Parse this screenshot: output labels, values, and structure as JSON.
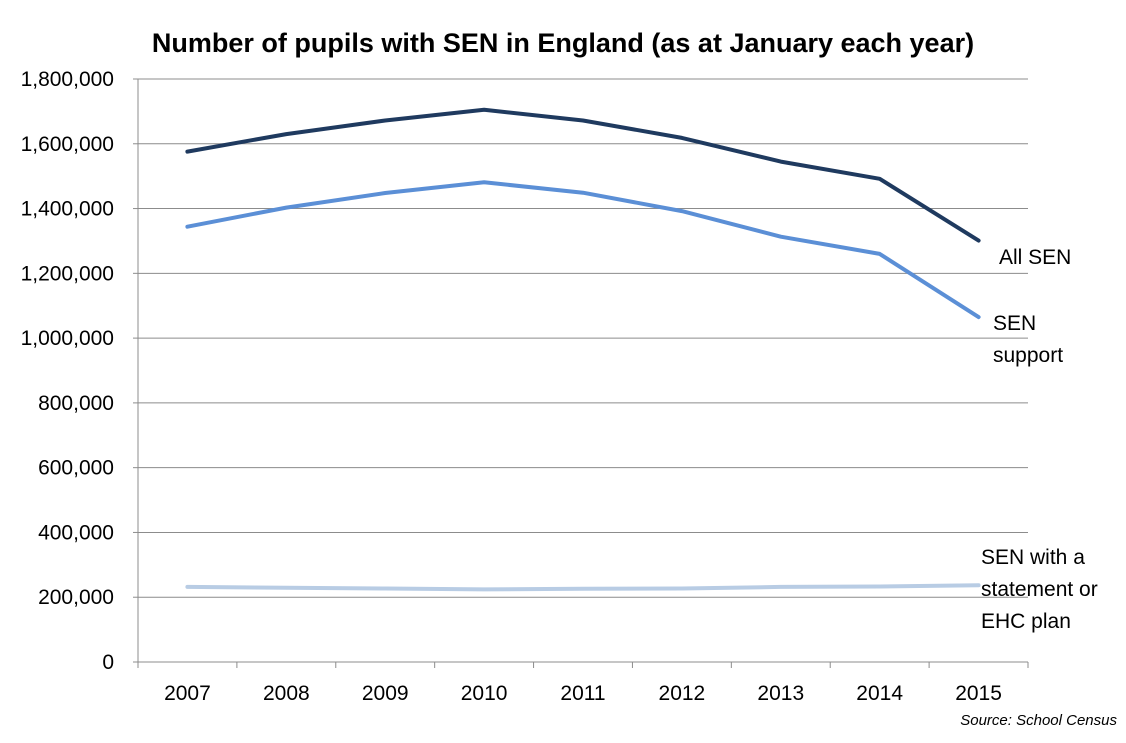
{
  "chart_data": {
    "type": "line",
    "title": "Number of pupils with SEN in England (as at January each year)",
    "xlabel": "",
    "ylabel": "",
    "source": "Source: School Census",
    "categories": [
      "2007",
      "2008",
      "2009",
      "2010",
      "2011",
      "2012",
      "2013",
      "2014",
      "2015"
    ],
    "ylim": [
      0,
      1800000
    ],
    "yticks": [
      0,
      200000,
      400000,
      600000,
      800000,
      1000000,
      1200000,
      1400000,
      1600000,
      1800000
    ],
    "ytick_labels": [
      "0",
      "200,000",
      "400,000",
      "600,000",
      "800,000",
      "1,000,000",
      "1,200,000",
      "1,400,000",
      "1,600,000",
      "1,800,000"
    ],
    "grid": true,
    "legend": "inline labels at right end of each line",
    "series": [
      {
        "name": "All SEN",
        "label_lines": [
          "All SEN"
        ],
        "color": "#1f3a5f",
        "values": [
          1576000,
          1630000,
          1672000,
          1705000,
          1672000,
          1618000,
          1545000,
          1492000,
          1301000
        ]
      },
      {
        "name": "SEN support",
        "label_lines": [
          "SEN",
          "support"
        ],
        "color": "#5b8fd6",
        "values": [
          1344000,
          1403000,
          1448000,
          1481000,
          1449000,
          1392000,
          1313000,
          1260000,
          1065000
        ]
      },
      {
        "name": "SEN with a statement or EHC plan",
        "label_lines": [
          "SEN with a",
          "statement or",
          "EHC plan"
        ],
        "color": "#b8cce4",
        "values": [
          232000,
          229000,
          227000,
          224000,
          226000,
          227000,
          232000,
          233000,
          237000
        ]
      }
    ]
  }
}
